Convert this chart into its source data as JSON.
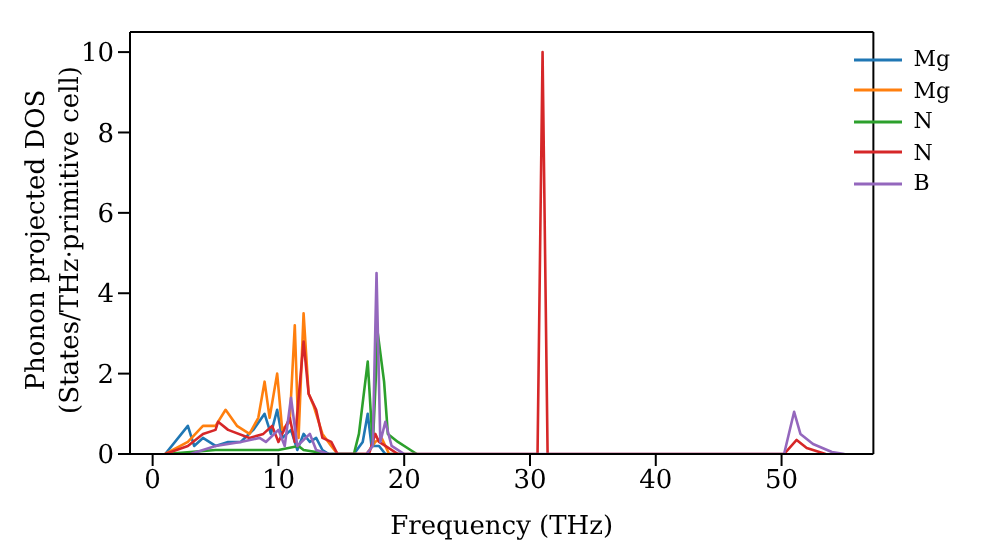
{
  "chart_data": {
    "type": "line",
    "xlabel": "Frequency (THz)",
    "ylabel": "Phonon projected DOS\n(States/THz·primitive cell)",
    "xlim": [
      -1.8,
      57.3
    ],
    "ylim": [
      0,
      10.5
    ],
    "xticks": [
      0,
      10,
      20,
      30,
      40,
      50
    ],
    "yticks": [
      0,
      2,
      4,
      6,
      8,
      10
    ],
    "legend": "top right",
    "marker": "none",
    "line_style": "solid",
    "series": [
      {
        "name": "Mg",
        "color": "#1f77b4",
        "x": [
          1,
          2.8,
          3.3,
          4,
          5,
          6,
          7,
          8,
          8.9,
          9.4,
          9.9,
          10.3,
          11,
          11.5,
          12,
          12.5,
          13,
          13.5,
          14,
          16,
          16.7,
          17.1,
          17.4,
          18,
          18.5,
          20
        ],
        "values": [
          0,
          0.7,
          0.2,
          0.4,
          0.2,
          0.3,
          0.3,
          0.6,
          1.0,
          0.5,
          1.1,
          0.4,
          0.6,
          0.1,
          0.5,
          0.3,
          0.4,
          0.1,
          0,
          0,
          0.3,
          1.0,
          0.2,
          0.2,
          0,
          0
        ]
      },
      {
        "name": "Mg",
        "color": "#ff7f0e",
        "x": [
          1,
          2.8,
          4,
          5,
          5.8,
          6.7,
          7.7,
          8.4,
          8.9,
          9.3,
          9.9,
          10.3,
          10.9,
          11.3,
          11.6,
          12,
          12.4,
          12.8,
          13.5,
          14.2,
          14.7,
          17,
          17.7,
          18.2,
          18.8,
          20
        ],
        "values": [
          0,
          0.3,
          0.7,
          0.7,
          1.1,
          0.7,
          0.5,
          0.9,
          1.8,
          0.9,
          2.0,
          0.6,
          0.8,
          3.2,
          0.4,
          3.5,
          1.5,
          1.2,
          0.5,
          0.2,
          0,
          0,
          0.3,
          0.4,
          0,
          0
        ]
      },
      {
        "name": "N",
        "color": "#2ca02c",
        "x": [
          1,
          5,
          10,
          11.6,
          12,
          14,
          16,
          16.4,
          17.1,
          17.5,
          17.9,
          18.4,
          18.7,
          19.5,
          20.5,
          21
        ],
        "values": [
          0,
          0.1,
          0.1,
          0.2,
          0.1,
          0,
          0,
          0.5,
          2.3,
          0.2,
          3.0,
          1.8,
          0.5,
          0.3,
          0.1,
          0
        ]
      },
      {
        "name": "N",
        "color": "#d62728",
        "x": [
          1,
          2.8,
          4,
          5,
          5.2,
          6,
          7.7,
          8.8,
          9.5,
          10,
          10.9,
          11.3,
          12,
          12.4,
          13,
          13.5,
          14.2,
          14.7,
          17.2,
          17.7,
          18,
          18.5,
          19.5,
          30.6,
          31.0,
          31.4,
          50.2,
          51.2,
          52,
          53.5
        ],
        "values": [
          0,
          0.2,
          0.5,
          0.6,
          0.8,
          0.6,
          0.4,
          0.5,
          0.7,
          0.3,
          0.9,
          0.3,
          2.8,
          1.5,
          1.1,
          0.4,
          0.3,
          0,
          0,
          0.5,
          0.3,
          0.2,
          0,
          0,
          10.0,
          0,
          0,
          0.35,
          0.15,
          0
        ]
      },
      {
        "name": "B",
        "color": "#9467bd",
        "x": [
          3,
          4,
          5,
          7,
          8.5,
          9,
          10,
          10.5,
          11,
          11.5,
          12.5,
          13,
          14,
          17,
          17.5,
          17.8,
          18.1,
          18.5,
          19,
          20,
          50.2,
          51,
          51.5,
          52.5,
          54,
          55
        ],
        "values": [
          0,
          0.1,
          0.2,
          0.3,
          0.4,
          0.3,
          0.6,
          0.2,
          1.4,
          0.2,
          0.5,
          0.1,
          0,
          0,
          0.2,
          4.5,
          0.3,
          0.8,
          0.2,
          0,
          0,
          1.05,
          0.5,
          0.25,
          0.05,
          0
        ]
      }
    ]
  }
}
